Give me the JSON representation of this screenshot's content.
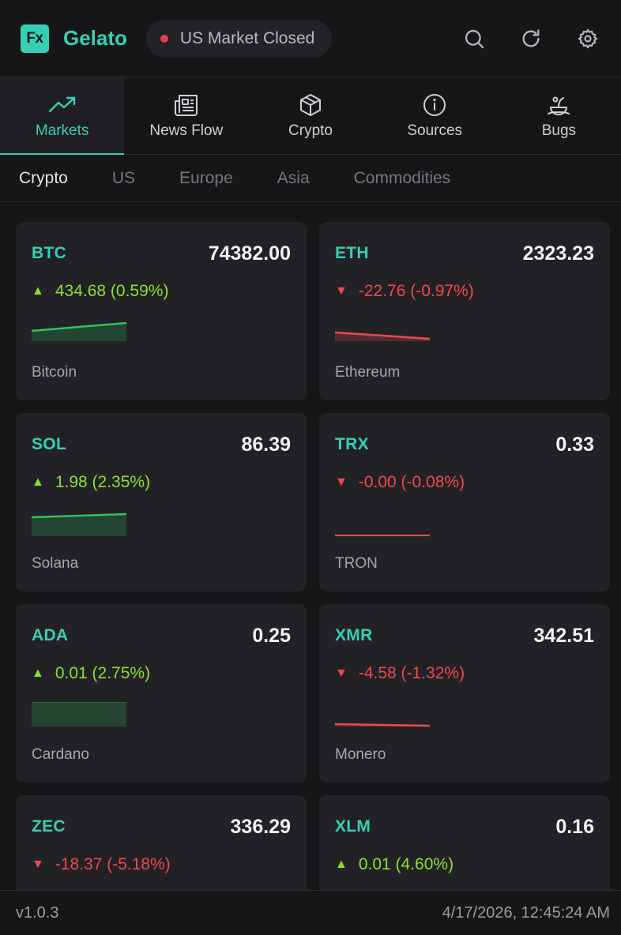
{
  "header": {
    "logo_text": "Fx",
    "brand": "Gelato",
    "market_status": "US Market Closed",
    "market_status_color": "#e0404a",
    "icons": [
      "search-icon",
      "refresh-icon",
      "gear-icon"
    ]
  },
  "nav": {
    "tabs": [
      {
        "label": "Markets",
        "icon": "trending-up-icon",
        "active": true
      },
      {
        "label": "News Flow",
        "icon": "newspaper-icon"
      },
      {
        "label": "Crypto",
        "icon": "box-icon"
      },
      {
        "label": "Sources",
        "icon": "info-icon"
      },
      {
        "label": "Bugs",
        "icon": "bug-icon"
      }
    ]
  },
  "subnav": {
    "tabs": [
      "Crypto",
      "US",
      "Europe",
      "Asia",
      "Commodities"
    ],
    "active": "Crypto"
  },
  "colors": {
    "accent": "#34d0b6",
    "up": "#8ee02a",
    "down": "#f0474b",
    "spark_up": "#2ec45d",
    "spark_down": "#e84a4f"
  },
  "cards": [
    {
      "symbol": "BTC",
      "price": "74382.00",
      "change": "434.68 (0.59%)",
      "direction": "up",
      "arrow": "▲",
      "name": "Bitcoin"
    },
    {
      "symbol": "ETH",
      "price": "2323.23",
      "change": "-22.76 (-0.97%)",
      "direction": "down",
      "arrow": "▼",
      "name": "Ethereum"
    },
    {
      "symbol": "SOL",
      "price": "86.39",
      "change": "1.98 (2.35%)",
      "direction": "up",
      "arrow": "▲",
      "name": "Solana"
    },
    {
      "symbol": "TRX",
      "price": "0.33",
      "change": "-0.00 (-0.08%)",
      "direction": "down",
      "arrow": "▼",
      "name": "TRON"
    },
    {
      "symbol": "ADA",
      "price": "0.25",
      "change": "0.01 (2.75%)",
      "direction": "up",
      "arrow": "▲",
      "name": "Cardano"
    },
    {
      "symbol": "XMR",
      "price": "342.51",
      "change": "-4.58 (-1.32%)",
      "direction": "down",
      "arrow": "▼",
      "name": "Monero"
    },
    {
      "symbol": "ZEC",
      "price": "336.29",
      "change": "-18.37 (-5.18%)",
      "direction": "down",
      "arrow": "▼",
      "name": ""
    },
    {
      "symbol": "XLM",
      "price": "0.16",
      "change": "0.01 (4.60%)",
      "direction": "up",
      "arrow": "▲",
      "name": ""
    }
  ],
  "footer": {
    "version": "v1.0.3",
    "timestamp": "4/17/2026, 12:45:24 AM"
  }
}
